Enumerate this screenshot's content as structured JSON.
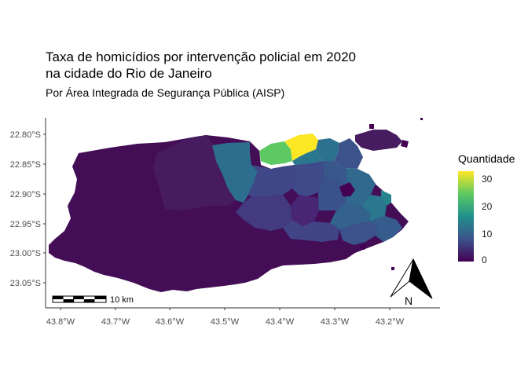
{
  "title_line1": "Taxa de homicídios por intervenção policial em 2020",
  "title_line2": "na cidade do Rio de Janeiro",
  "subtitle": "Por Área Integrada de Segurança Pública (AISP)",
  "legend": {
    "title": "Quantidade",
    "labels": [
      "0",
      "10",
      "20",
      "30"
    ]
  },
  "scalebar": {
    "label": "10 km"
  },
  "north_arrow": {
    "label": "N"
  },
  "colors": {
    "low": "#440154",
    "mid": "#21908c",
    "high": "#fde725"
  },
  "chart_data": {
    "type": "map",
    "y_ticks": [
      "22.80°S",
      "22.85°S",
      "22.90°S",
      "22.95°S",
      "23.00°S",
      "23.05°S"
    ],
    "x_ticks": [
      "43.8°W",
      "43.7°W",
      "43.6°W",
      "43.5°W",
      "43.4°W",
      "43.3°W",
      "43.2°W"
    ],
    "color_scale": {
      "min": 0,
      "max": 33
    }
  }
}
